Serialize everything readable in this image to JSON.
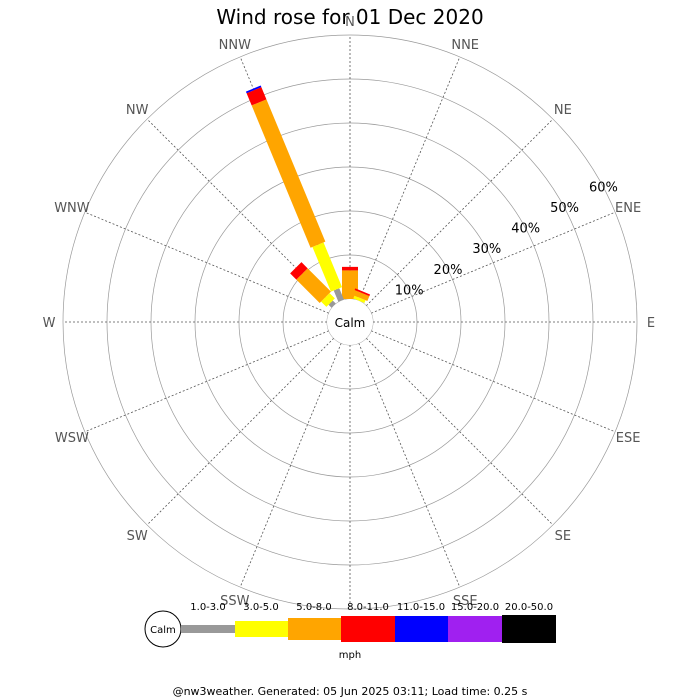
{
  "chart_data": {
    "type": "windrose",
    "title": "Wind rose for 01 Dec 2020",
    "directions": [
      "N",
      "NNE",
      "NE",
      "ENE",
      "E",
      "ESE",
      "SE",
      "SSE",
      "S",
      "SSW",
      "SW",
      "WSW",
      "W",
      "WNW",
      "NW",
      "NNW"
    ],
    "rings_percent": [
      10,
      20,
      30,
      40,
      50,
      60
    ],
    "ring_labels": [
      "10%",
      "20%",
      "30%",
      "40%",
      "50%",
      "60%"
    ],
    "calm_label": "Calm",
    "unit_label": "mph",
    "speed_bins": [
      {
        "label": "1.0-3.0",
        "color": "#999999"
      },
      {
        "label": "3.0-5.0",
        "color": "#ffff00"
      },
      {
        "label": "5.0-8.0",
        "color": "#ffa500"
      },
      {
        "label": "8.0-11.0",
        "color": "#ff0000"
      },
      {
        "label": "11.0-15.0",
        "color": "#0000ff"
      },
      {
        "label": "15.0-20.0",
        "color": "#a020f0"
      },
      {
        "label": "20.0-50.0",
        "color": "#000000"
      }
    ],
    "series": [
      {
        "direction": "N",
        "values": [
          0,
          0,
          6.5,
          0.8,
          0,
          0,
          0
        ]
      },
      {
        "direction": "NNE",
        "values": [
          0,
          0.7,
          1.2,
          0.4,
          0,
          0,
          0
        ]
      },
      {
        "direction": "NW",
        "values": [
          1.0,
          1.7,
          7.5,
          2.0,
          0,
          0,
          0
        ]
      },
      {
        "direction": "NNW",
        "values": [
          2.8,
          11.0,
          35.0,
          3.0,
          0.4,
          0,
          0
        ]
      }
    ]
  },
  "footer": "@nw3weather. Generated: 05 Jun 2025 03:11; Load time: 0.25 s"
}
